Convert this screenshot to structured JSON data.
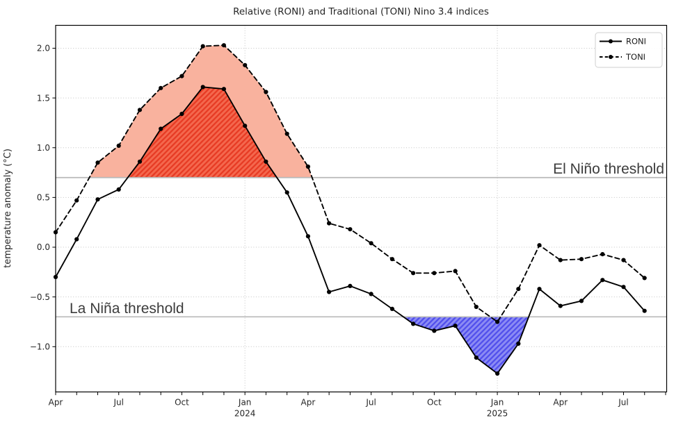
{
  "chart_data": {
    "type": "line",
    "title": "Relative (RONI) and Traditional (TONI) Nino 3.4 indices",
    "ylabel": "temperature anomaly (°C)",
    "x_months": [
      "Apr 2023",
      "May 2023",
      "Jun 2023",
      "Jul 2023",
      "Aug 2023",
      "Sep 2023",
      "Oct 2023",
      "Nov 2023",
      "Dec 2023",
      "Jan 2024",
      "Feb 2024",
      "Mar 2024",
      "Apr 2024",
      "May 2024",
      "Jun 2024",
      "Jul 2024",
      "Aug 2024",
      "Sep 2024",
      "Oct 2024",
      "Nov 2024",
      "Dec 2024",
      "Jan 2025",
      "Feb 2025",
      "Mar 2025",
      "Apr 2025",
      "May 2025",
      "Jun 2025",
      "Jul 2025",
      "Aug 2025"
    ],
    "series": [
      {
        "name": "RONI",
        "line": "solid",
        "color": "#000000",
        "values": [
          -0.3,
          0.08,
          0.48,
          0.58,
          0.86,
          1.19,
          1.34,
          1.61,
          1.59,
          1.22,
          0.86,
          0.55,
          0.11,
          -0.45,
          -0.39,
          -0.47,
          -0.62,
          -0.77,
          -0.84,
          -0.79,
          -1.11,
          -1.27,
          -0.97,
          -0.42,
          -0.59,
          -0.54,
          -0.33,
          -0.4,
          -0.64
        ]
      },
      {
        "name": "TONI",
        "line": "dashed",
        "color": "#000000",
        "values": [
          0.15,
          0.47,
          0.85,
          1.02,
          1.38,
          1.6,
          1.72,
          2.02,
          2.03,
          1.83,
          1.56,
          1.14,
          0.81,
          0.24,
          0.18,
          0.04,
          -0.12,
          -0.26,
          -0.26,
          -0.24,
          -0.6,
          -0.75,
          -0.42,
          0.02,
          -0.13,
          -0.12,
          -0.07,
          -0.13,
          -0.31
        ]
      }
    ],
    "ylim": [
      -1.455,
      2.23
    ],
    "xlim_months": 29.05,
    "y_ticks": [
      {
        "v": 2.0,
        "label": "2.0"
      },
      {
        "v": 1.5,
        "label": "1.5"
      },
      {
        "v": 1.0,
        "label": "1.0"
      },
      {
        "v": 0.5,
        "label": "0.5"
      },
      {
        "v": 0.0,
        "label": "0.0"
      },
      {
        "v": -0.5,
        "label": "−0.5"
      },
      {
        "v": -1.0,
        "label": "−1.0"
      }
    ],
    "x_major_ticks": [
      {
        "m": 0,
        "label": "Apr"
      },
      {
        "m": 3,
        "label": "Jul"
      },
      {
        "m": 6,
        "label": "Oct"
      },
      {
        "m": 9,
        "label": "Jan",
        "year": "2024"
      },
      {
        "m": 12,
        "label": "Apr"
      },
      {
        "m": 15,
        "label": "Jul"
      },
      {
        "m": 18,
        "label": "Oct"
      },
      {
        "m": 21,
        "label": "Jan",
        "year": "2025"
      },
      {
        "m": 24,
        "label": "Apr"
      },
      {
        "m": 27,
        "label": "Jul"
      }
    ],
    "x_grid_months": [
      9,
      21
    ],
    "grid_color": "#c3c3c3",
    "thresholds": {
      "line_color": "#b9b9b9",
      "el_nino": {
        "value": 0.7,
        "label": "El Niño threshold"
      },
      "la_nina": {
        "value": -0.7,
        "label": "La Niña threshold"
      }
    },
    "fills": [
      {
        "series": "TONI",
        "threshold": 0.7,
        "side": "above",
        "color": "#f9b29e",
        "hatch": null
      },
      {
        "series": "RONI",
        "threshold": 0.7,
        "side": "above",
        "color": "#f4684e",
        "hatch": "hatch-red"
      },
      {
        "series": "RONI",
        "threshold": -0.7,
        "side": "below",
        "color": "#8c8cf4",
        "hatch": "hatch-blue"
      }
    ],
    "hatch_colors": {
      "red": "#e73b24",
      "blue": "#514fec"
    },
    "legend": {
      "items": [
        "RONI",
        "TONI"
      ]
    }
  }
}
